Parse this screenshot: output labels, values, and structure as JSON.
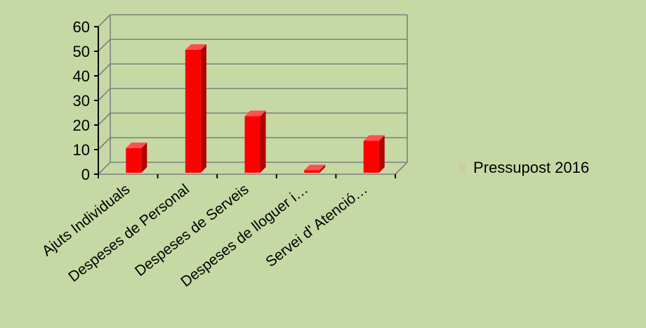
{
  "chart_data": {
    "type": "bar",
    "categories": [
      "Ajuts Individuals",
      "Despeses de Personal",
      "Despeses de Serveis",
      "Despeses de lloguer i…",
      "Servei d' Atenció…"
    ],
    "series": [
      {
        "name": "Pressupost 2016",
        "values": [
          10,
          50,
          23,
          1,
          13
        ]
      }
    ],
    "ylim": [
      0,
      60
    ],
    "yticks": [
      "0",
      "10",
      "20",
      "30",
      "40",
      "50",
      "60"
    ],
    "grid": true,
    "legend_position": "right",
    "bar_color": "#ff0000",
    "legend_marker_color": "#c8cf9b",
    "background_color": "#c6d9a4"
  }
}
